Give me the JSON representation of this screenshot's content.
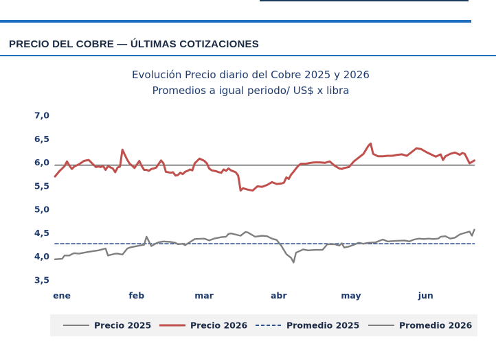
{
  "header": {
    "section_title": "PRECIO DEL COBRE — ÚLTIMAS COTIZACIONES"
  },
  "chart_data": {
    "type": "line",
    "title": "Evolución Precio diario del Cobre 2025 y 2026",
    "subtitle": "Promedios a igual periodo/ US$ x libra",
    "xlabel": "",
    "ylabel": "",
    "ylim": [
      3.5,
      7.0
    ],
    "yticks": [
      3.5,
      4.0,
      4.5,
      5.0,
      5.5,
      6.0,
      6.5,
      7.0
    ],
    "ytick_labels": [
      "3,5",
      "4,0",
      "4,5",
      "5,0",
      "5,5",
      "6,0",
      "6,5",
      "7,0"
    ],
    "xlim": [
      0,
      175
    ],
    "x_ticks": [
      {
        "label": "ene",
        "x": 0
      },
      {
        "label": "feb",
        "x": 31
      },
      {
        "label": "mar",
        "x": 59
      },
      {
        "label": "abr",
        "x": 90
      },
      {
        "label": "may",
        "x": 120
      },
      {
        "label": "jun",
        "x": 151
      }
    ],
    "grid": false,
    "legend_position": "bottom",
    "series": [
      {
        "name": "Precio 2025",
        "color": "#7f7f7f",
        "style": "solid",
        "x": [
          0,
          3,
          4,
          6,
          7,
          8,
          10,
          14,
          18,
          21,
          22,
          25,
          26,
          28,
          30,
          31,
          34,
          37,
          38,
          40,
          42,
          43,
          45,
          48,
          50,
          51,
          53,
          54,
          58,
          62,
          64,
          66,
          69,
          71,
          72,
          73,
          77,
          79,
          80,
          83,
          86,
          88,
          90,
          92,
          94,
          96,
          98,
          99,
          100,
          103,
          105,
          108,
          111,
          113,
          116,
          118,
          119,
          120,
          122,
          124,
          126,
          128,
          130,
          133,
          135,
          136,
          138,
          141,
          145,
          147,
          149,
          151,
          153,
          155,
          157,
          159,
          160,
          162,
          164,
          166,
          168,
          170,
          172,
          173,
          174
        ],
        "values": [
          3.94,
          3.95,
          4.02,
          4.02,
          4.05,
          4.07,
          4.06,
          4.1,
          4.13,
          4.17,
          4.02,
          4.06,
          4.06,
          4.04,
          4.17,
          4.19,
          4.22,
          4.25,
          4.42,
          4.22,
          4.28,
          4.3,
          4.32,
          4.31,
          4.29,
          4.26,
          4.27,
          4.24,
          4.37,
          4.38,
          4.34,
          4.38,
          4.41,
          4.42,
          4.48,
          4.49,
          4.44,
          4.52,
          4.51,
          4.42,
          4.44,
          4.43,
          4.38,
          4.35,
          4.22,
          4.05,
          3.97,
          3.87,
          4.08,
          4.15,
          4.13,
          4.14,
          4.14,
          4.26,
          4.26,
          4.23,
          4.28,
          4.19,
          4.21,
          4.25,
          4.29,
          4.27,
          4.29,
          4.3,
          4.34,
          4.36,
          4.32,
          4.33,
          4.34,
          4.32,
          4.36,
          4.38,
          4.37,
          4.38,
          4.37,
          4.38,
          4.42,
          4.43,
          4.38,
          4.4,
          4.47,
          4.5,
          4.53,
          4.44,
          4.57
        ]
      },
      {
        "name": "Precio 2026",
        "color": "#c0504d",
        "style": "solid",
        "x": [
          0,
          2,
          4,
          5,
          6,
          7,
          8,
          10,
          12,
          14,
          15,
          17,
          18,
          19,
          20,
          21,
          22,
          24,
          25,
          26,
          27,
          28,
          30,
          31,
          32,
          33,
          35,
          36,
          37,
          38,
          39,
          40,
          41,
          42,
          44,
          45,
          46,
          47,
          48,
          49,
          50,
          51,
          52,
          53,
          54,
          55,
          56,
          57,
          58,
          60,
          62,
          63,
          64,
          65,
          67,
          68,
          69,
          70,
          71,
          72,
          73,
          75,
          76,
          77,
          78,
          80,
          82,
          84,
          86,
          88,
          90,
          92,
          94,
          95,
          96,
          97,
          98,
          99,
          100,
          101,
          102,
          104,
          106,
          108,
          110,
          112,
          114,
          116,
          118,
          119,
          120,
          122,
          124,
          126,
          128,
          130,
          131,
          132,
          134,
          136,
          138,
          140,
          142,
          144,
          146,
          148,
          150,
          152,
          154,
          156,
          158,
          160,
          161,
          162,
          164,
          166,
          168,
          169,
          170,
          171,
          172,
          173,
          174
        ],
        "values": [
          5.7,
          5.82,
          5.92,
          6.02,
          5.93,
          5.86,
          5.91,
          5.96,
          6.03,
          6.05,
          6.0,
          5.9,
          5.91,
          5.9,
          5.92,
          5.84,
          5.92,
          5.87,
          5.79,
          5.89,
          5.91,
          6.27,
          6.05,
          5.97,
          5.93,
          5.88,
          6.03,
          5.92,
          5.84,
          5.84,
          5.82,
          5.86,
          5.87,
          5.89,
          6.04,
          5.98,
          5.8,
          5.79,
          5.78,
          5.79,
          5.72,
          5.73,
          5.78,
          5.75,
          5.8,
          5.82,
          5.85,
          5.83,
          5.98,
          6.08,
          6.03,
          5.98,
          5.87,
          5.83,
          5.81,
          5.79,
          5.78,
          5.85,
          5.82,
          5.87,
          5.83,
          5.79,
          5.72,
          5.4,
          5.45,
          5.42,
          5.4,
          5.49,
          5.48,
          5.52,
          5.58,
          5.54,
          5.55,
          5.57,
          5.68,
          5.65,
          5.74,
          5.8,
          5.87,
          5.93,
          5.97,
          5.97,
          5.99,
          6.0,
          6.0,
          5.99,
          6.02,
          5.93,
          5.87,
          5.86,
          5.88,
          5.9,
          6.02,
          6.1,
          6.18,
          6.35,
          6.4,
          6.18,
          6.13,
          6.13,
          6.14,
          6.14,
          6.16,
          6.17,
          6.14,
          6.22,
          6.3,
          6.28,
          6.22,
          6.17,
          6.12,
          6.17,
          6.05,
          6.13,
          6.18,
          6.21,
          6.16,
          6.2,
          6.18,
          6.08,
          5.98,
          6.01,
          6.04
        ]
      },
      {
        "name": "Promedio 2025",
        "color": "#2f4f8f",
        "style": "dashed",
        "x": [
          0,
          174
        ],
        "values": [
          4.27,
          4.27
        ]
      },
      {
        "name": "Promedio 2026",
        "color": "#7f7f7f",
        "style": "solid",
        "x": [
          0,
          174
        ],
        "values": [
          5.94,
          5.94
        ]
      }
    ]
  }
}
